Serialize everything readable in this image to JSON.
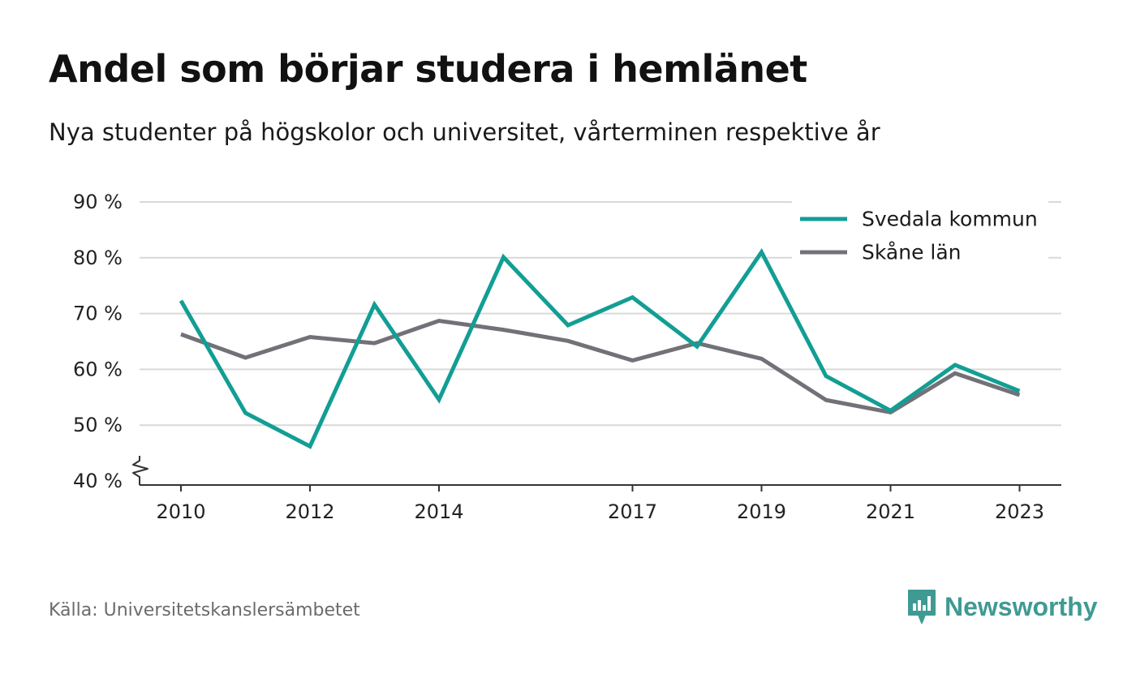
{
  "header": {
    "title": "Andel som börjar studera i hemlänet",
    "subtitle": "Nya studenter på högskolor och universitet, vårterminen respektive år"
  },
  "footer": {
    "source": "Källa: Universitetskanslersämbetet",
    "brand": "Newsworthy",
    "brand_icon": "bar-chart-speech-bubble-icon"
  },
  "colors": {
    "svedala": "#129e94",
    "skane": "#737178",
    "grid": "#d9d9d9",
    "axis": "#333333",
    "brand": "#3f9a93"
  },
  "chart_data": {
    "type": "line",
    "x": [
      2010,
      2011,
      2012,
      2013,
      2014,
      2015,
      2016,
      2017,
      2018,
      2019,
      2020,
      2021,
      2022,
      2023
    ],
    "x_tick_labels": [
      "2010",
      "2012",
      "2014",
      "2017",
      "2019",
      "2021",
      "2023"
    ],
    "series": [
      {
        "name": "Svedala kommun",
        "values": [
          72.3,
          52.2,
          46.2,
          71.6,
          54.6,
          80.1,
          67.9,
          72.9,
          64.1,
          81.0,
          58.8,
          52.6,
          60.8,
          56.1
        ]
      },
      {
        "name": "Skåne län",
        "values": [
          66.3,
          62.1,
          65.8,
          64.7,
          68.7,
          67.1,
          65.1,
          61.6,
          64.7,
          61.9,
          54.5,
          52.3,
          59.3,
          55.4
        ]
      }
    ],
    "y_ticks": [
      40,
      50,
      60,
      70,
      80,
      90
    ],
    "y_tick_labels": [
      "40 %",
      "50 %",
      "60 %",
      "70 %",
      "80 %",
      "90 %"
    ],
    "ylim": [
      40,
      90
    ],
    "y_axis_break": true,
    "grid": true,
    "legend": "top-right"
  }
}
